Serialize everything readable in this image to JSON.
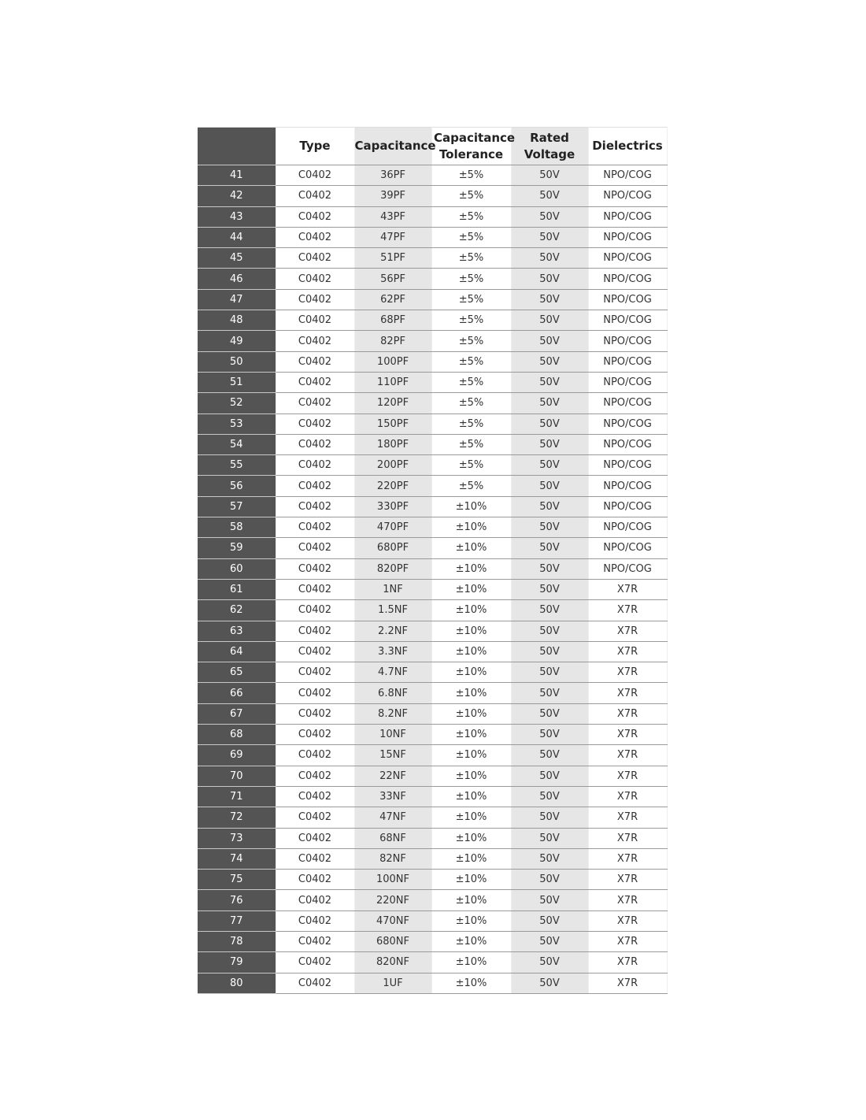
{
  "table": {
    "headers": [
      "",
      "Type",
      "Capacitance",
      "Capacitance Tolerance",
      "Rated Voltage",
      "Dielectrics"
    ],
    "rows": [
      [
        "41",
        "C0402",
        "36PF",
        "±5%",
        "50V",
        "NPO/COG"
      ],
      [
        "42",
        "C0402",
        "39PF",
        "±5%",
        "50V",
        "NPO/COG"
      ],
      [
        "43",
        "C0402",
        "43PF",
        "±5%",
        "50V",
        "NPO/COG"
      ],
      [
        "44",
        "C0402",
        "47PF",
        "±5%",
        "50V",
        "NPO/COG"
      ],
      [
        "45",
        "C0402",
        "51PF",
        "±5%",
        "50V",
        "NPO/COG"
      ],
      [
        "46",
        "C0402",
        "56PF",
        "±5%",
        "50V",
        "NPO/COG"
      ],
      [
        "47",
        "C0402",
        "62PF",
        "±5%",
        "50V",
        "NPO/COG"
      ],
      [
        "48",
        "C0402",
        "68PF",
        "±5%",
        "50V",
        "NPO/COG"
      ],
      [
        "49",
        "C0402",
        "82PF",
        "±5%",
        "50V",
        "NPO/COG"
      ],
      [
        "50",
        "C0402",
        "100PF",
        "±5%",
        "50V",
        "NPO/COG"
      ],
      [
        "51",
        "C0402",
        "110PF",
        "±5%",
        "50V",
        "NPO/COG"
      ],
      [
        "52",
        "C0402",
        "120PF",
        "±5%",
        "50V",
        "NPO/COG"
      ],
      [
        "53",
        "C0402",
        "150PF",
        "±5%",
        "50V",
        "NPO/COG"
      ],
      [
        "54",
        "C0402",
        "180PF",
        "±5%",
        "50V",
        "NPO/COG"
      ],
      [
        "55",
        "C0402",
        "200PF",
        "±5%",
        "50V",
        "NPO/COG"
      ],
      [
        "56",
        "C0402",
        "220PF",
        "±5%",
        "50V",
        "NPO/COG"
      ],
      [
        "57",
        "C0402",
        "330PF",
        "±10%",
        "50V",
        "NPO/COG"
      ],
      [
        "58",
        "C0402",
        "470PF",
        "±10%",
        "50V",
        "NPO/COG"
      ],
      [
        "59",
        "C0402",
        "680PF",
        "±10%",
        "50V",
        "NPO/COG"
      ],
      [
        "60",
        "C0402",
        "820PF",
        "±10%",
        "50V",
        "NPO/COG"
      ],
      [
        "61",
        "C0402",
        "1NF",
        "±10%",
        "50V",
        "X7R"
      ],
      [
        "62",
        "C0402",
        "1.5NF",
        "±10%",
        "50V",
        "X7R"
      ],
      [
        "63",
        "C0402",
        "2.2NF",
        "±10%",
        "50V",
        "X7R"
      ],
      [
        "64",
        "C0402",
        "3.3NF",
        "±10%",
        "50V",
        "X7R"
      ],
      [
        "65",
        "C0402",
        "4.7NF",
        "±10%",
        "50V",
        "X7R"
      ],
      [
        "66",
        "C0402",
        "6.8NF",
        "±10%",
        "50V",
        "X7R"
      ],
      [
        "67",
        "C0402",
        "8.2NF",
        "±10%",
        "50V",
        "X7R"
      ],
      [
        "68",
        "C0402",
        "10NF",
        "±10%",
        "50V",
        "X7R"
      ],
      [
        "69",
        "C0402",
        "15NF",
        "±10%",
        "50V",
        "X7R"
      ],
      [
        "70",
        "C0402",
        "22NF",
        "±10%",
        "50V",
        "X7R"
      ],
      [
        "71",
        "C0402",
        "33NF",
        "±10%",
        "50V",
        "X7R"
      ],
      [
        "72",
        "C0402",
        "47NF",
        "±10%",
        "50V",
        "X7R"
      ],
      [
        "73",
        "C0402",
        "68NF",
        "±10%",
        "50V",
        "X7R"
      ],
      [
        "74",
        "C0402",
        "82NF",
        "±10%",
        "50V",
        "X7R"
      ],
      [
        "75",
        "C0402",
        "100NF",
        "±10%",
        "50V",
        "X7R"
      ],
      [
        "76",
        "C0402",
        "220NF",
        "±10%",
        "50V",
        "X7R"
      ],
      [
        "77",
        "C0402",
        "470NF",
        "±10%",
        "50V",
        "X7R"
      ],
      [
        "78",
        "C0402",
        "680NF",
        "±10%",
        "50V",
        "X7R"
      ],
      [
        "79",
        "C0402",
        "820NF",
        "±10%",
        "50V",
        "X7R"
      ],
      [
        "80",
        "C0402",
        "1UF",
        "±10%",
        "50V",
        "X7R"
      ]
    ]
  },
  "colors": {
    "index_column": "#545454",
    "shaded_column": "#e6e6e6"
  }
}
